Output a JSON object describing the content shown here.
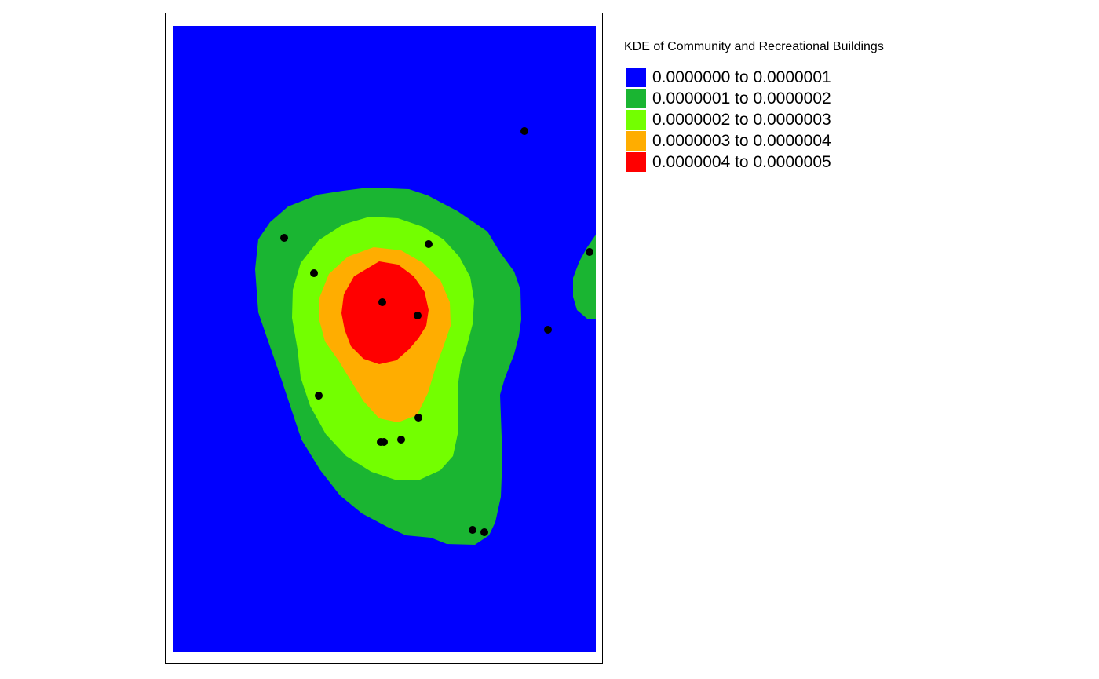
{
  "legend": {
    "title": "KDE of Community and Recreational Buildings",
    "items": [
      {
        "label": "0.0000000 to 0.0000001",
        "color": "#0000ff"
      },
      {
        "label": "0.0000001 to 0.0000002",
        "color": "#1ab532"
      },
      {
        "label": "0.0000002 to 0.0000003",
        "color": "#73ff00"
      },
      {
        "label": "0.0000003 to 0.0000004",
        "color": "#ffad00"
      },
      {
        "label": "0.0000004 to 0.0000005",
        "color": "#ff0000"
      }
    ]
  },
  "map": {
    "point_color": "#000000"
  }
}
